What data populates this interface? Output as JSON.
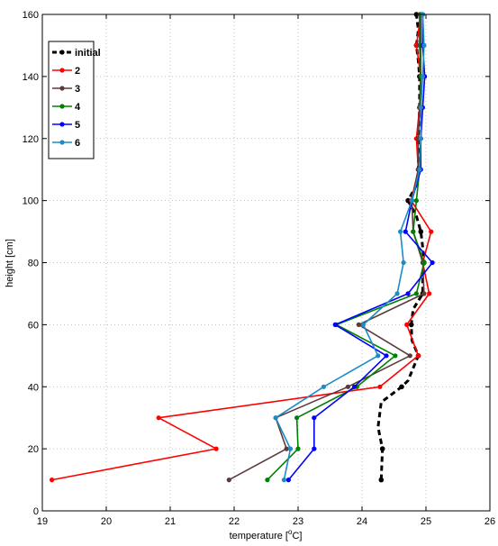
{
  "chart_data": {
    "type": "line",
    "xlabel_main": "temperature [",
    "xlabel_sup": "o",
    "xlabel_tail": "C]",
    "ylabel": "height [cm]",
    "xlim": [
      19,
      26
    ],
    "ylim": [
      0,
      160
    ],
    "xticks": [
      "19",
      "20",
      "21",
      "22",
      "23",
      "24",
      "25",
      "26"
    ],
    "yticks": [
      "0",
      "20",
      "40",
      "60",
      "80",
      "100",
      "120",
      "140",
      "160"
    ],
    "grid": true,
    "legend_position": "top-left",
    "series": [
      {
        "name": "initial",
        "color": "#000000",
        "dashed": true,
        "points": [
          [
            24.3,
            10
          ],
          [
            24.32,
            20
          ],
          [
            24.25,
            27
          ],
          [
            24.3,
            35
          ],
          [
            24.62,
            40
          ],
          [
            24.72,
            42
          ],
          [
            24.88,
            50
          ],
          [
            24.78,
            55
          ],
          [
            24.77,
            60
          ],
          [
            24.8,
            65
          ],
          [
            24.95,
            70
          ],
          [
            24.95,
            75
          ],
          [
            24.97,
            80
          ],
          [
            24.95,
            85
          ],
          [
            24.92,
            90
          ],
          [
            24.85,
            95
          ],
          [
            24.72,
            100
          ],
          [
            24.85,
            105
          ],
          [
            24.88,
            110
          ],
          [
            24.88,
            115
          ],
          [
            24.88,
            120
          ],
          [
            24.9,
            130
          ],
          [
            24.9,
            140
          ],
          [
            24.88,
            145
          ],
          [
            24.85,
            150
          ],
          [
            24.88,
            155
          ],
          [
            24.85,
            160
          ]
        ]
      },
      {
        "name": "2",
        "color": "#ff0000",
        "dashed": false,
        "points": [
          [
            19.15,
            10
          ],
          [
            21.72,
            20
          ],
          [
            20.82,
            30
          ],
          [
            24.28,
            40
          ],
          [
            24.88,
            50
          ],
          [
            24.7,
            60
          ],
          [
            25.05,
            70
          ],
          [
            24.95,
            80
          ],
          [
            25.08,
            90
          ],
          [
            24.77,
            100
          ],
          [
            24.88,
            110
          ],
          [
            24.85,
            120
          ],
          [
            24.9,
            130
          ],
          [
            24.92,
            140
          ],
          [
            24.85,
            150
          ],
          [
            24.92,
            160
          ]
        ]
      },
      {
        "name": "3",
        "color": "#5c3a3a",
        "dashed": false,
        "points": [
          [
            21.92,
            10
          ],
          [
            22.82,
            20
          ],
          [
            22.65,
            30
          ],
          [
            23.78,
            40
          ],
          [
            24.75,
            50
          ],
          [
            23.95,
            60
          ],
          [
            24.97,
            70
          ],
          [
            24.95,
            80
          ],
          [
            24.8,
            90
          ],
          [
            24.78,
            100
          ],
          [
            24.88,
            110
          ],
          [
            24.88,
            120
          ],
          [
            24.9,
            130
          ],
          [
            24.92,
            140
          ],
          [
            24.9,
            150
          ],
          [
            24.9,
            160
          ]
        ]
      },
      {
        "name": "4",
        "color": "#008000",
        "dashed": false,
        "points": [
          [
            22.52,
            10
          ],
          [
            23.0,
            20
          ],
          [
            22.98,
            30
          ],
          [
            23.92,
            40
          ],
          [
            24.52,
            50
          ],
          [
            23.6,
            60
          ],
          [
            24.85,
            70
          ],
          [
            24.97,
            80
          ],
          [
            24.8,
            90
          ],
          [
            24.85,
            100
          ],
          [
            24.9,
            110
          ],
          [
            24.92,
            120
          ],
          [
            24.92,
            130
          ],
          [
            24.92,
            140
          ],
          [
            24.92,
            150
          ],
          [
            24.92,
            160
          ]
        ]
      },
      {
        "name": "5",
        "color": "#0000ff",
        "dashed": false,
        "points": [
          [
            22.85,
            10
          ],
          [
            23.25,
            20
          ],
          [
            23.25,
            30
          ],
          [
            23.88,
            40
          ],
          [
            24.38,
            50
          ],
          [
            23.58,
            60
          ],
          [
            24.72,
            70
          ],
          [
            25.1,
            80
          ],
          [
            24.68,
            90
          ],
          [
            24.78,
            100
          ],
          [
            24.92,
            110
          ],
          [
            24.92,
            120
          ],
          [
            24.95,
            130
          ],
          [
            24.98,
            140
          ],
          [
            24.95,
            150
          ],
          [
            24.95,
            160
          ]
        ]
      },
      {
        "name": "6",
        "color": "#1e8bc3",
        "dashed": false,
        "points": [
          [
            22.78,
            10
          ],
          [
            22.88,
            20
          ],
          [
            22.65,
            30
          ],
          [
            23.4,
            40
          ],
          [
            24.25,
            50
          ],
          [
            24.02,
            60
          ],
          [
            24.55,
            70
          ],
          [
            24.65,
            80
          ],
          [
            24.6,
            90
          ],
          [
            24.78,
            100
          ],
          [
            24.9,
            110
          ],
          [
            24.92,
            120
          ],
          [
            24.92,
            130
          ],
          [
            24.95,
            140
          ],
          [
            24.97,
            150
          ],
          [
            24.95,
            160
          ]
        ]
      }
    ]
  }
}
